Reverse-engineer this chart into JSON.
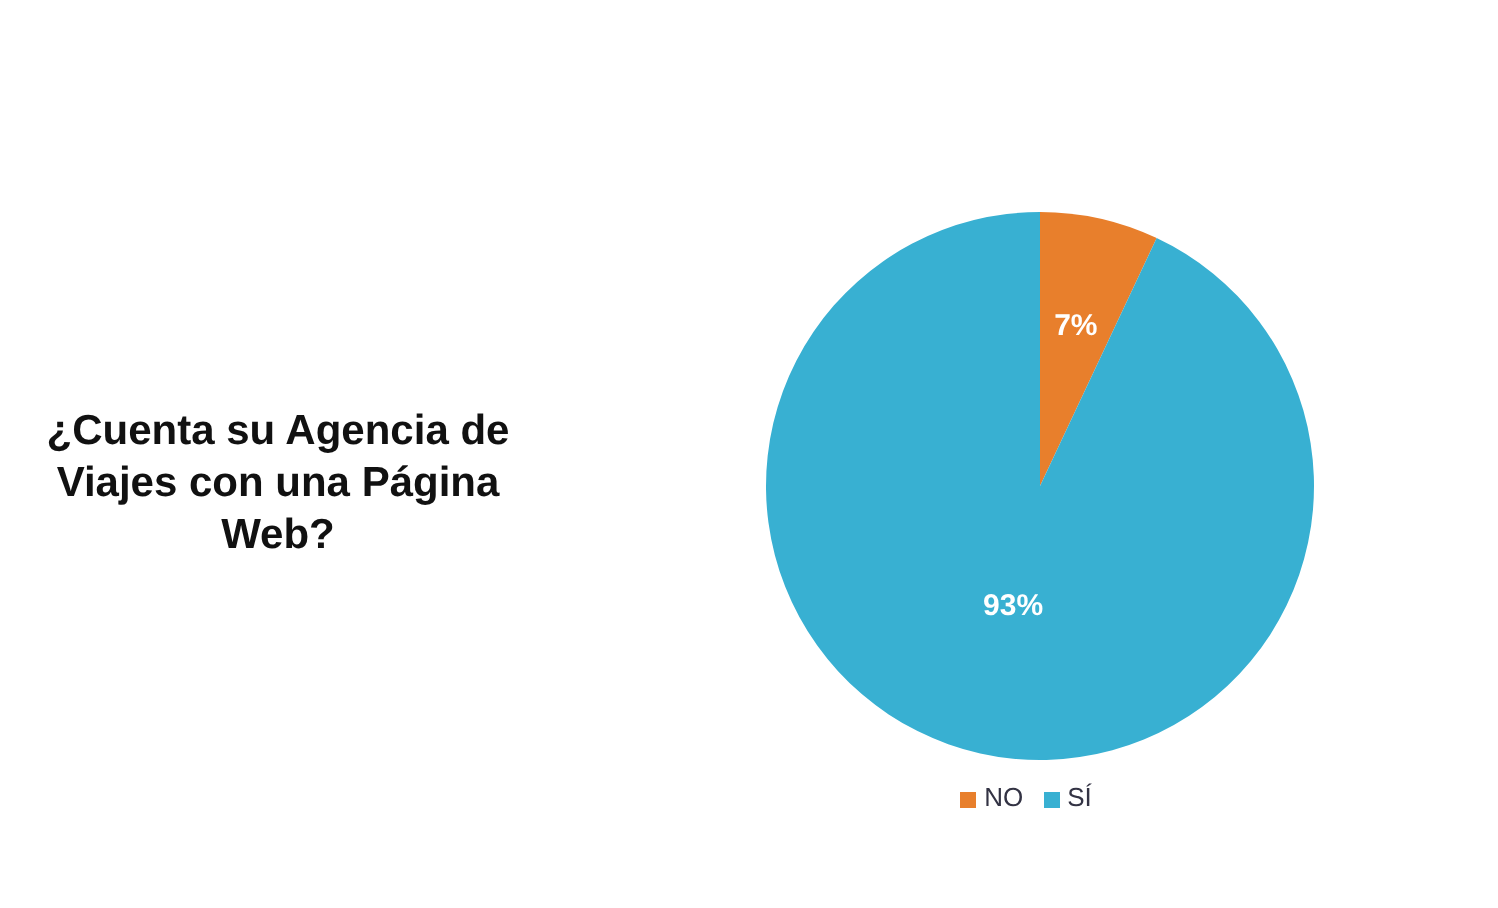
{
  "chart_data": {
    "type": "pie",
    "title": "¿Cuenta su Agencia de Viajes con una Página Web?",
    "categories": [
      "NO",
      "SÍ"
    ],
    "values": [
      7,
      93
    ],
    "colors": [
      "#e87f2c",
      "#38b0d2"
    ],
    "value_labels": [
      "7%",
      "93%"
    ],
    "legend": "bottom"
  }
}
